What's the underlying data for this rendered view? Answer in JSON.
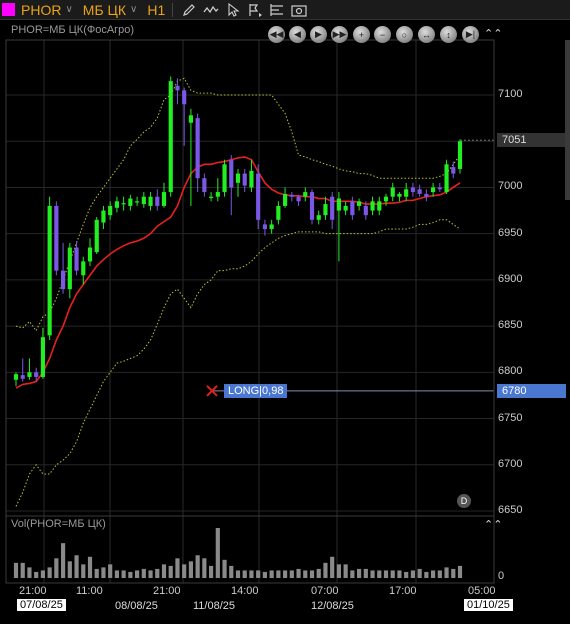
{
  "toolbar": {
    "symbol": "PHOR",
    "market": "МБ ЦК",
    "timeframe": "H1",
    "symbol_color": "#ff00ff",
    "icons": [
      "pencil-icon",
      "wave-icon",
      "cursor-icon",
      "arrow-flag-icon",
      "levels-icon",
      "camera-icon"
    ]
  },
  "chart": {
    "title": "PHOR=МБ ЦК(ФосАгро)",
    "volume_title": "Vol(PHOR=МБ ЦК)",
    "current_price": "7051",
    "position_price": "6780",
    "position_label": "LONG|0,98",
    "d_badge": "D",
    "y_ticks": [
      "7100",
      "7050",
      "7000",
      "6950",
      "6900",
      "6850",
      "6800",
      "6750",
      "6700",
      "6650"
    ],
    "y_tick_values": [
      7100,
      7050,
      7000,
      6950,
      6900,
      6850,
      6800,
      6750,
      6700,
      6650
    ],
    "volume_zero": "0",
    "x_times": [
      "21:00",
      "11:00",
      "21:00",
      "14:00",
      "07:00",
      "17:00",
      "05:00"
    ],
    "x_dates": [
      "07/08/25",
      "08/08/25",
      "11/08/25",
      "12/08/25",
      "01/10/25"
    ],
    "colors": {
      "up": "#22ee22",
      "down": "#7b57e6",
      "ma": "#e8201e",
      "band": "#b8c43a",
      "position": "#4a78d0"
    }
  },
  "chart_data": {
    "type": "candlestick",
    "ylim": [
      6650,
      7125
    ],
    "current_price": 7051,
    "position_price": 6780,
    "candles": [
      [
        6792,
        6798,
        6785,
        6800
      ],
      [
        6797,
        6793,
        6790,
        6815
      ],
      [
        6795,
        6800,
        6792,
        6815
      ],
      [
        6800,
        6795,
        6790,
        6805
      ],
      [
        6795,
        6838,
        6793,
        6848
      ],
      [
        6840,
        6980,
        6835,
        6990
      ],
      [
        6980,
        6910,
        6905,
        6985
      ],
      [
        6910,
        6890,
        6885,
        6940
      ],
      [
        6890,
        6935,
        6880,
        6940
      ],
      [
        6935,
        6910,
        6905,
        6942
      ],
      [
        6905,
        6920,
        6895,
        6925
      ],
      [
        6920,
        6935,
        6915,
        6945
      ],
      [
        6930,
        6965,
        6928,
        6968
      ],
      [
        6962,
        6975,
        6955,
        6980
      ],
      [
        6970,
        6980,
        6965,
        6985
      ],
      [
        6978,
        6985,
        6973,
        6990
      ],
      [
        6983,
        6983,
        6975,
        6990
      ],
      [
        6980,
        6988,
        6975,
        6992
      ],
      [
        6985,
        6985,
        6980,
        6990
      ],
      [
        6982,
        6990,
        6978,
        6995
      ],
      [
        6980,
        6990,
        6975,
        6995
      ],
      [
        6990,
        6980,
        6975,
        6998
      ],
      [
        6980,
        6995,
        6978,
        7005
      ],
      [
        6995,
        7115,
        6990,
        7120
      ],
      [
        7110,
        7105,
        7090,
        7118
      ],
      [
        7105,
        7090,
        7045,
        7108
      ],
      [
        7070,
        7078,
        6980,
        7085
      ],
      [
        7075,
        7010,
        6995,
        7080
      ],
      [
        7010,
        6995,
        6990,
        7015
      ],
      [
        6990,
        6990,
        6985,
        6995
      ],
      [
        6990,
        6995,
        6985,
        7010
      ],
      [
        6995,
        7025,
        6990,
        7030
      ],
      [
        7030,
        7000,
        6970,
        7035
      ],
      [
        7005,
        7015,
        6990,
        7020
      ],
      [
        7015,
        7002,
        6995,
        7020
      ],
      [
        7000,
        7018,
        6995,
        7030
      ],
      [
        7015,
        6965,
        6955,
        7025
      ],
      [
        6960,
        6955,
        6948,
        6965
      ],
      [
        6955,
        6960,
        6950,
        6965
      ],
      [
        6965,
        6980,
        6960,
        6985
      ],
      [
        6980,
        6993,
        6978,
        7000
      ],
      [
        6992,
        6990,
        6985,
        6995
      ],
      [
        6990,
        6985,
        6980,
        6992
      ],
      [
        6990,
        6995,
        6985,
        7000
      ],
      [
        6995,
        6965,
        6960,
        6998
      ],
      [
        6965,
        6970,
        6960,
        6975
      ],
      [
        6970,
        6982,
        6965,
        6990
      ],
      [
        6990,
        6965,
        6955,
        6995
      ],
      [
        6975,
        6988,
        6920,
        6995
      ],
      [
        6975,
        6980,
        6970,
        6985
      ],
      [
        6985,
        6970,
        6965,
        6990
      ],
      [
        6980,
        6985,
        6975,
        6988
      ],
      [
        6980,
        6970,
        6965,
        6985
      ],
      [
        6975,
        6985,
        6970,
        6990
      ],
      [
        6975,
        6985,
        6970,
        6990
      ],
      [
        6985,
        6990,
        6980,
        6993
      ],
      [
        6990,
        7000,
        6985,
        7005
      ],
      [
        6990,
        6993,
        6985,
        6995
      ],
      [
        6990,
        6998,
        6985,
        7005
      ],
      [
        7000,
        6995,
        6990,
        7005
      ],
      [
        6998,
        6993,
        6990,
        7003
      ],
      [
        6993,
        6990,
        6985,
        6998
      ],
      [
        6995,
        7000,
        6990,
        7005
      ],
      [
        7000,
        6998,
        6995,
        7005
      ],
      [
        6995,
        7025,
        6993,
        7030
      ],
      [
        7022,
        7015,
        7010,
        7028
      ],
      [
        7020,
        7050,
        7015,
        7052
      ]
    ],
    "volume": [
      20,
      20,
      14,
      8,
      10,
      14,
      26,
      46,
      22,
      30,
      18,
      28,
      12,
      14,
      18,
      10,
      10,
      8,
      10,
      12,
      10,
      12,
      18,
      16,
      26,
      18,
      22,
      30,
      26,
      16,
      66,
      24,
      16,
      10,
      10,
      10,
      10,
      8,
      10,
      10,
      10,
      10,
      12,
      10,
      10,
      12,
      20,
      28,
      18,
      18,
      10,
      12,
      12,
      10,
      10,
      10,
      10,
      10,
      8,
      10,
      12,
      8,
      10,
      10,
      14,
      12,
      16
    ],
    "ma": [
      6783,
      6787,
      6788,
      6790,
      6800,
      6815,
      6835,
      6850,
      6870,
      6885,
      6895,
      6905,
      6915,
      6922,
      6928,
      6933,
      6937,
      6940,
      6942,
      6945,
      6950,
      6958,
      6963,
      6968,
      6980,
      7000,
      7015,
      7022,
      7025,
      7025,
      7027,
      7028,
      7030,
      7032,
      7033,
      7030,
      7017,
      7005,
      6998,
      6994,
      6992,
      6991,
      6991,
      6990,
      6990,
      6988,
      6988,
      6985,
      6985,
      6985,
      6985,
      6984,
      6982,
      6982,
      6982,
      6983,
      6983,
      6984,
      6986,
      6986,
      6988,
      6990,
      6991,
      6992,
      6995,
      7000,
      7005
    ],
    "band_upper": [
      6850,
      6848,
      6855,
      6845,
      6860,
      6865,
      6880,
      6900,
      6920,
      6940,
      6960,
      6978,
      6990,
      7000,
      7010,
      7020,
      7030,
      7045,
      7052,
      7060,
      7065,
      7075,
      7095,
      7100,
      7115,
      7118,
      7105,
      7102,
      7102,
      7102,
      7100,
      7100,
      7100,
      7100,
      7100,
      7100,
      7100,
      7100,
      7100,
      7090,
      7080,
      7060,
      7035,
      7033,
      7030,
      7028,
      7025,
      7023,
      7020,
      7018,
      7017,
      7015,
      7015,
      7013,
      7010,
      7010,
      7010,
      7010,
      7010,
      7010,
      7010,
      7010,
      7010,
      7012,
      7015,
      7025,
      7035
    ],
    "band_lower": [
      6655,
      6670,
      6690,
      6700,
      6690,
      6690,
      6700,
      6705,
      6712,
      6725,
      6745,
      6760,
      6775,
      6790,
      6800,
      6810,
      6812,
      6815,
      6818,
      6825,
      6835,
      6852,
      6870,
      6885,
      6890,
      6880,
      6870,
      6885,
      6895,
      6900,
      6910,
      6910,
      6912,
      6912,
      6915,
      6920,
      6928,
      6935,
      6940,
      6945,
      6948,
      6950,
      6952,
      6952,
      6952,
      6952,
      6950,
      6950,
      6950,
      6950,
      6950,
      6950,
      6950,
      6950,
      6952,
      6955,
      6955,
      6955,
      6955,
      6957,
      6960,
      6960,
      6962,
      6965,
      6965,
      6960,
      6955
    ]
  }
}
